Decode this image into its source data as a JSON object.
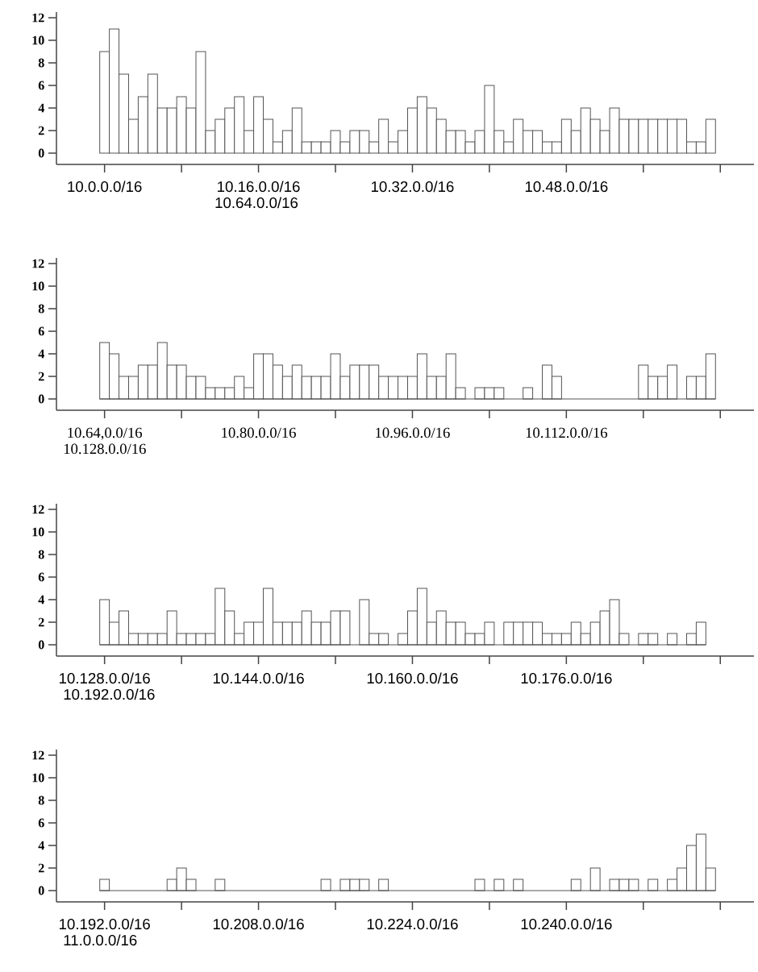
{
  "chart_data": [
    {
      "type": "bar",
      "categories": [
        "10.0.0.0/16",
        null,
        null,
        null,
        null,
        null,
        null,
        null,
        null,
        null,
        null,
        null,
        null,
        null,
        null,
        null,
        "10.16.0.0/16",
        null,
        null,
        null,
        null,
        null,
        null,
        null,
        null,
        null,
        null,
        null,
        null,
        null,
        null,
        null,
        "10.32.0.0/16",
        null,
        null,
        null,
        null,
        null,
        null,
        null,
        null,
        null,
        null,
        null,
        null,
        null,
        null,
        null,
        "10.48.0.0/16",
        null,
        null,
        null,
        null,
        null,
        null,
        null,
        null,
        null,
        null,
        null,
        null,
        null,
        null,
        null
      ],
      "values": [
        9,
        11,
        7,
        3,
        5,
        7,
        4,
        4,
        5,
        4,
        9,
        2,
        3,
        4,
        5,
        2,
        5,
        3,
        1,
        2,
        4,
        1,
        1,
        1,
        2,
        1,
        2,
        2,
        1,
        3,
        1,
        2,
        4,
        5,
        4,
        3,
        2,
        2,
        1,
        2,
        6,
        2,
        1,
        3,
        2,
        2,
        1,
        1,
        3,
        2,
        4,
        3,
        2,
        4,
        3,
        3,
        3,
        3,
        3,
        3,
        3,
        1,
        1,
        3
      ],
      "color": "#555555",
      "ylim": [
        -1,
        12.5
      ],
      "yticks": [
        0,
        2,
        4,
        6,
        8,
        10,
        12
      ],
      "annotations": [
        "10.64.0.0/16"
      ]
    },
    {
      "type": "bar",
      "categories": [
        "10.64,0.0/16",
        null,
        null,
        null,
        null,
        null,
        null,
        null,
        null,
        null,
        null,
        null,
        null,
        null,
        null,
        null,
        "10.80.0.0/16",
        null,
        null,
        null,
        null,
        null,
        null,
        null,
        null,
        null,
        null,
        null,
        null,
        null,
        null,
        null,
        "10.96.0.0/16",
        null,
        null,
        null,
        null,
        null,
        null,
        null,
        null,
        null,
        null,
        null,
        null,
        null,
        null,
        null,
        "10.112.0.0/16",
        null,
        null,
        null,
        null,
        null,
        null,
        null,
        null,
        null,
        null,
        null,
        null,
        null,
        null,
        null
      ],
      "values": [
        5,
        4,
        2,
        2,
        3,
        3,
        5,
        3,
        3,
        2,
        2,
        1,
        1,
        1,
        2,
        1,
        4,
        4,
        3,
        2,
        3,
        2,
        2,
        2,
        4,
        2,
        3,
        3,
        3,
        2,
        2,
        2,
        2,
        4,
        2,
        2,
        4,
        1,
        0,
        1,
        1,
        1,
        0,
        0,
        1,
        0,
        3,
        2,
        0,
        0,
        0,
        0,
        0,
        0,
        0,
        0,
        3,
        2,
        2,
        3,
        0,
        2,
        2,
        4
      ],
      "color": "#555555",
      "ylim": [
        -1,
        12.5
      ],
      "yticks": [
        0,
        2,
        4,
        6,
        8,
        10,
        12
      ],
      "annotations": [
        "10.128.0.0/16"
      ],
      "ref_lines": [
        {
          "axis": "y",
          "value": 0,
          "color": "#555555"
        }
      ]
    },
    {
      "type": "bar",
      "categories": [
        "10.128.0.0/16",
        null,
        null,
        null,
        null,
        null,
        null,
        null,
        null,
        null,
        null,
        null,
        null,
        null,
        null,
        null,
        "10.144.0.0/16",
        null,
        null,
        null,
        null,
        null,
        null,
        null,
        null,
        null,
        null,
        null,
        null,
        null,
        null,
        null,
        "10.160.0.0/16",
        null,
        null,
        null,
        null,
        null,
        null,
        null,
        null,
        null,
        null,
        null,
        null,
        null,
        null,
        null,
        "10.176.0.0/16",
        null,
        null,
        null,
        null,
        null,
        null,
        null,
        null,
        null,
        null,
        null,
        null,
        null,
        null,
        null
      ],
      "values": [
        4,
        2,
        3,
        1,
        1,
        1,
        1,
        3,
        1,
        1,
        1,
        1,
        5,
        3,
        1,
        2,
        2,
        5,
        2,
        2,
        2,
        3,
        2,
        2,
        3,
        3,
        0,
        4,
        1,
        1,
        0,
        1,
        3,
        5,
        2,
        3,
        2,
        2,
        1,
        1,
        2,
        0,
        2,
        2,
        2,
        2,
        1,
        1,
        1,
        2,
        1,
        2,
        3,
        4,
        1,
        0,
        1,
        1,
        0,
        1,
        0,
        1,
        2,
        null
      ],
      "color": "#555555",
      "ylim": [
        -1,
        12.5
      ],
      "yticks": [
        0,
        2,
        4,
        6,
        8,
        10,
        12
      ],
      "annotations": [
        "10.192.0.0/16"
      ],
      "ref_lines": [
        {
          "axis": "y",
          "value": 0,
          "color": "#555555"
        }
      ]
    },
    {
      "type": "bar",
      "categories": [
        "10.192.0.0/16",
        null,
        null,
        null,
        null,
        null,
        null,
        null,
        null,
        null,
        null,
        null,
        null,
        null,
        null,
        null,
        "10.208.0.0/16",
        null,
        null,
        null,
        null,
        null,
        null,
        null,
        null,
        null,
        null,
        null,
        null,
        null,
        null,
        null,
        "10.224.0.0/16",
        null,
        null,
        null,
        null,
        null,
        null,
        null,
        null,
        null,
        null,
        null,
        null,
        null,
        null,
        null,
        "10.240.0.0/16",
        null,
        null,
        null,
        null,
        null,
        null,
        null,
        null,
        null,
        null,
        null,
        null,
        null,
        null,
        null
      ],
      "values": [
        1,
        0,
        0,
        0,
        0,
        0,
        0,
        1,
        2,
        1,
        0,
        0,
        1,
        0,
        0,
        0,
        0,
        0,
        0,
        0,
        0,
        0,
        0,
        1,
        0,
        1,
        1,
        1,
        0,
        1,
        0,
        0,
        0,
        0,
        0,
        0,
        0,
        0,
        0,
        1,
        0,
        1,
        0,
        1,
        0,
        0,
        0,
        0,
        0,
        1,
        0,
        2,
        0,
        1,
        1,
        1,
        0,
        1,
        0,
        1,
        2,
        4,
        5,
        2
      ],
      "color": "#555555",
      "ylim": [
        -1,
        12.5
      ],
      "yticks": [
        0,
        2,
        4,
        6,
        8,
        10,
        12
      ],
      "annotations": [
        "11.0.0.0/16"
      ],
      "ref_lines": [
        {
          "axis": "y",
          "value": 0,
          "color": "#555555"
        }
      ]
    }
  ]
}
